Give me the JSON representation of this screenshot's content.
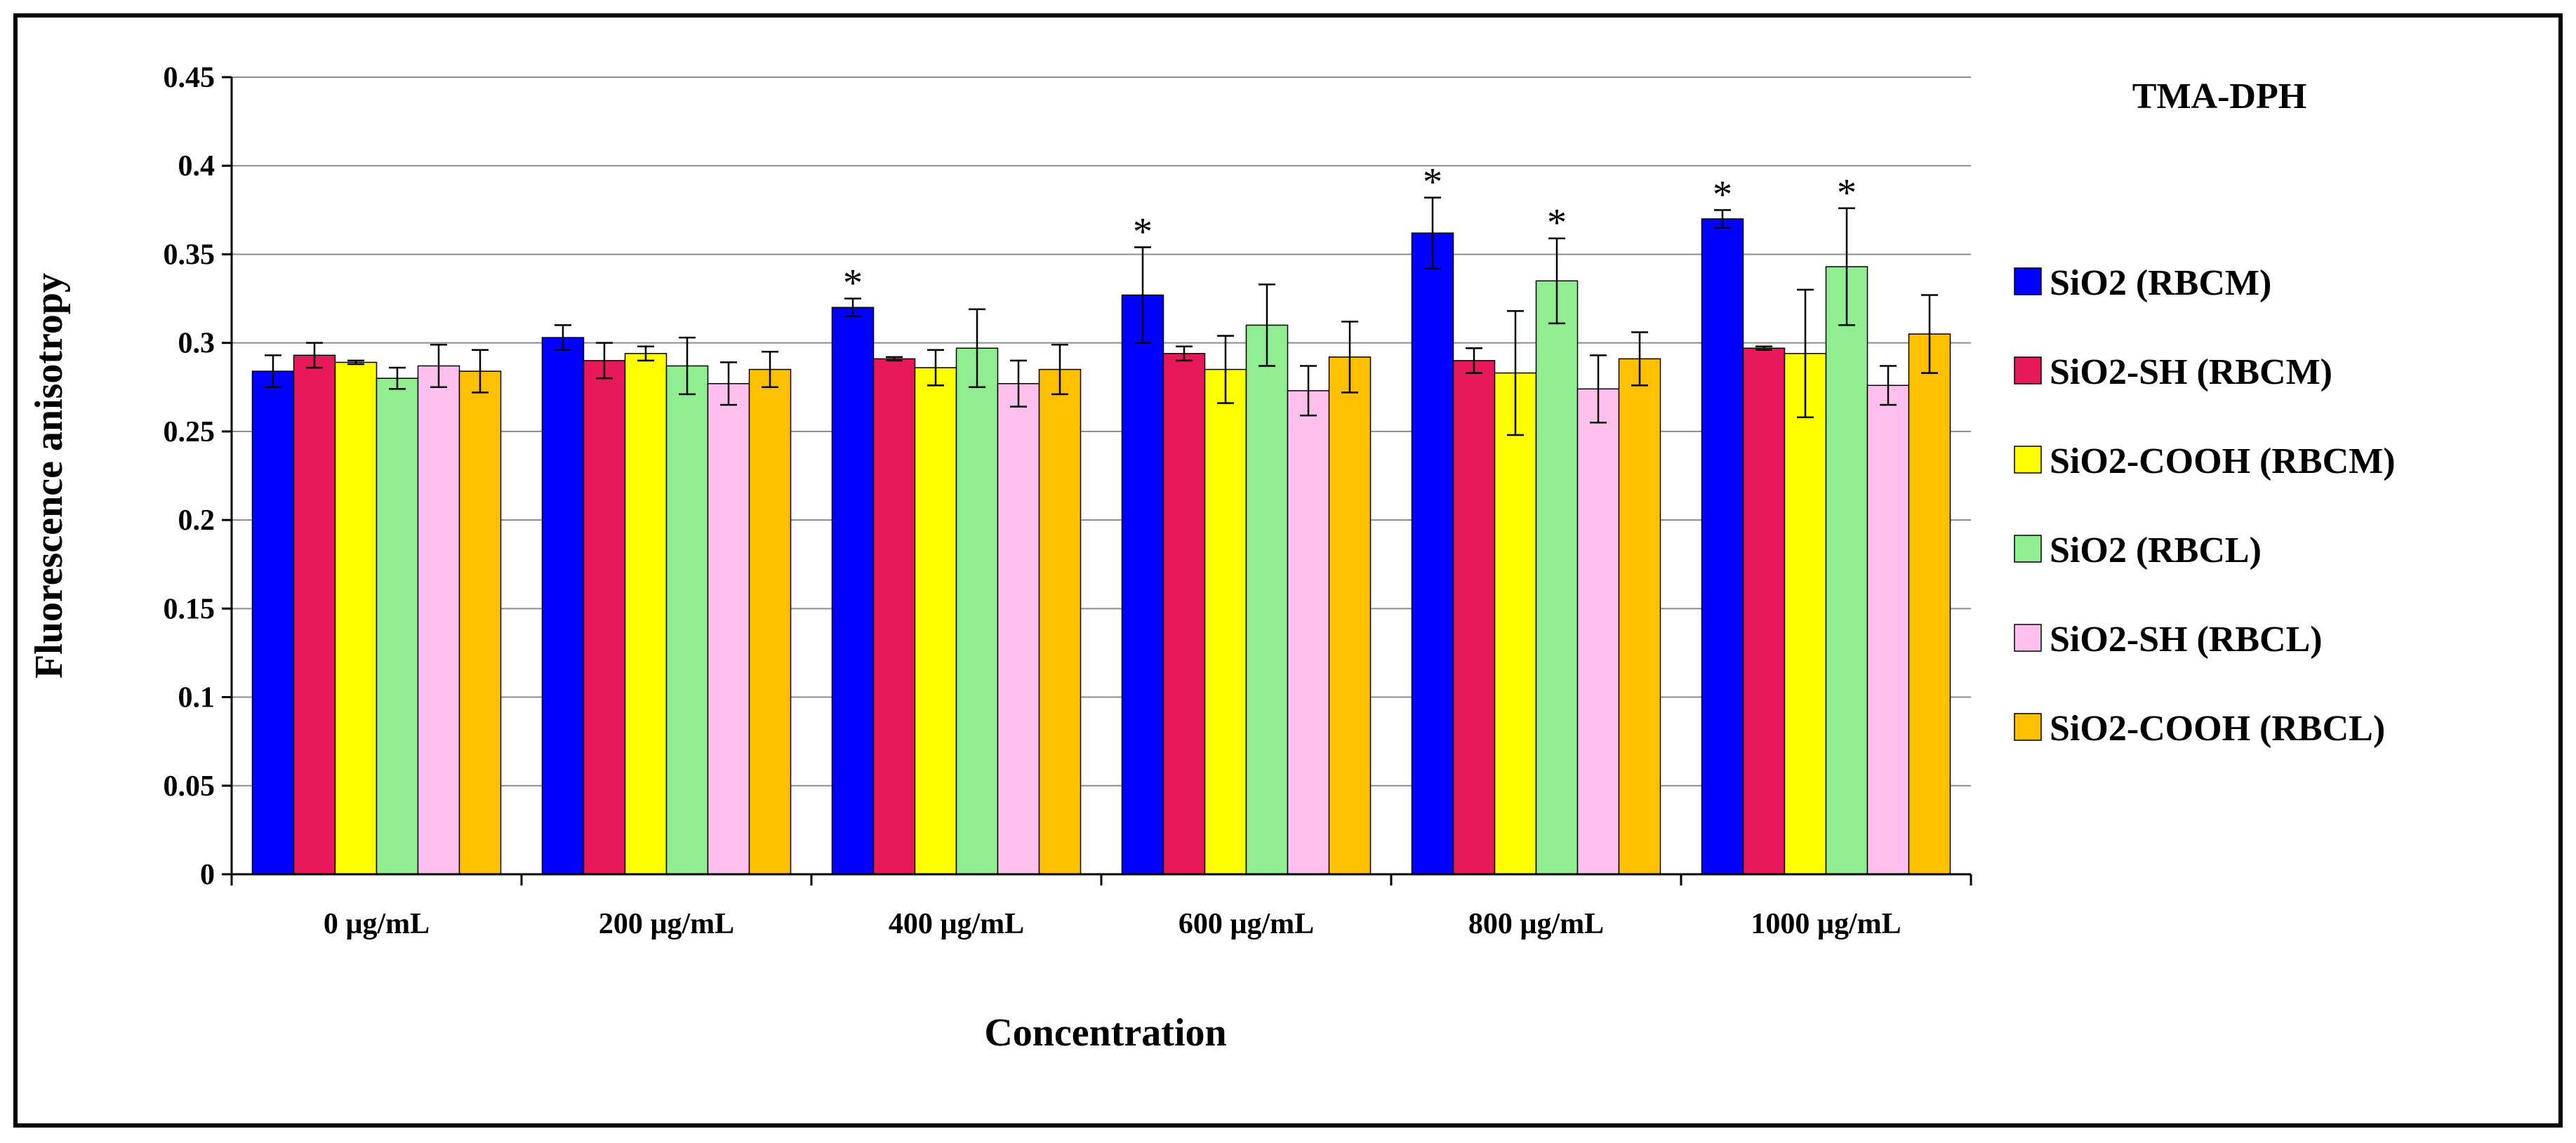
{
  "chart_data": {
    "type": "bar",
    "title": "TMA-DPH",
    "xlabel": "Concentration",
    "ylabel": "Fluorescence  anisotropy",
    "ylim": [
      0,
      0.45
    ],
    "yticks": [
      0,
      0.05,
      0.1,
      0.15,
      0.2,
      0.25,
      0.3,
      0.35,
      0.4,
      0.45
    ],
    "ytick_labels": [
      "0",
      "0.05",
      "0.1",
      "0.15",
      "0.2",
      "0.25",
      "0.3",
      "0.35",
      "0.4",
      "0.45"
    ],
    "grid": true,
    "legend_position": "right",
    "categories": [
      "0 µg/mL",
      "200 µg/mL",
      "400 µg/mL",
      "600 µg/mL",
      "800 µg/mL",
      "1000 µg/mL"
    ],
    "series": [
      {
        "name": "SiO2 (RBCM)",
        "color": "#0000ff",
        "values": [
          0.284,
          0.303,
          0.32,
          0.327,
          0.362,
          0.37
        ],
        "errors": [
          0.009,
          0.007,
          0.005,
          0.027,
          0.02,
          0.005
        ]
      },
      {
        "name": "SiO2-SH (RBCM)",
        "color": "#e8195a",
        "values": [
          0.293,
          0.29,
          0.291,
          0.294,
          0.29,
          0.297
        ],
        "errors": [
          0.007,
          0.01,
          0.001,
          0.004,
          0.007,
          0.001
        ]
      },
      {
        "name": "SiO2-COOH  (RBCM)",
        "color": "#ffff00",
        "values": [
          0.289,
          0.294,
          0.286,
          0.285,
          0.283,
          0.294
        ],
        "errors": [
          0.001,
          0.004,
          0.01,
          0.019,
          0.035,
          0.036
        ]
      },
      {
        "name": "SiO2 (RBCL)",
        "color": "#90ee90",
        "values": [
          0.28,
          0.287,
          0.297,
          0.31,
          0.335,
          0.343
        ],
        "errors": [
          0.006,
          0.016,
          0.022,
          0.023,
          0.024,
          0.033
        ]
      },
      {
        "name": "SiO2-SH (RBCL)",
        "color": "#ffc0f0",
        "values": [
          0.287,
          0.277,
          0.277,
          0.273,
          0.274,
          0.276
        ],
        "errors": [
          0.012,
          0.012,
          0.013,
          0.014,
          0.019,
          0.011
        ]
      },
      {
        "name": "SiO2-COOH  (RBCL)",
        "color": "#ffc000",
        "values": [
          0.284,
          0.285,
          0.285,
          0.292,
          0.291,
          0.305
        ],
        "errors": [
          0.012,
          0.01,
          0.014,
          0.02,
          0.015,
          0.022
        ]
      }
    ],
    "significance": [
      {
        "series": 0,
        "category": 2,
        "mark": "*"
      },
      {
        "series": 0,
        "category": 3,
        "mark": "*"
      },
      {
        "series": 0,
        "category": 4,
        "mark": "*"
      },
      {
        "series": 3,
        "category": 4,
        "mark": "*"
      },
      {
        "series": 0,
        "category": 5,
        "mark": "*"
      },
      {
        "series": 3,
        "category": 5,
        "mark": "*"
      }
    ]
  }
}
